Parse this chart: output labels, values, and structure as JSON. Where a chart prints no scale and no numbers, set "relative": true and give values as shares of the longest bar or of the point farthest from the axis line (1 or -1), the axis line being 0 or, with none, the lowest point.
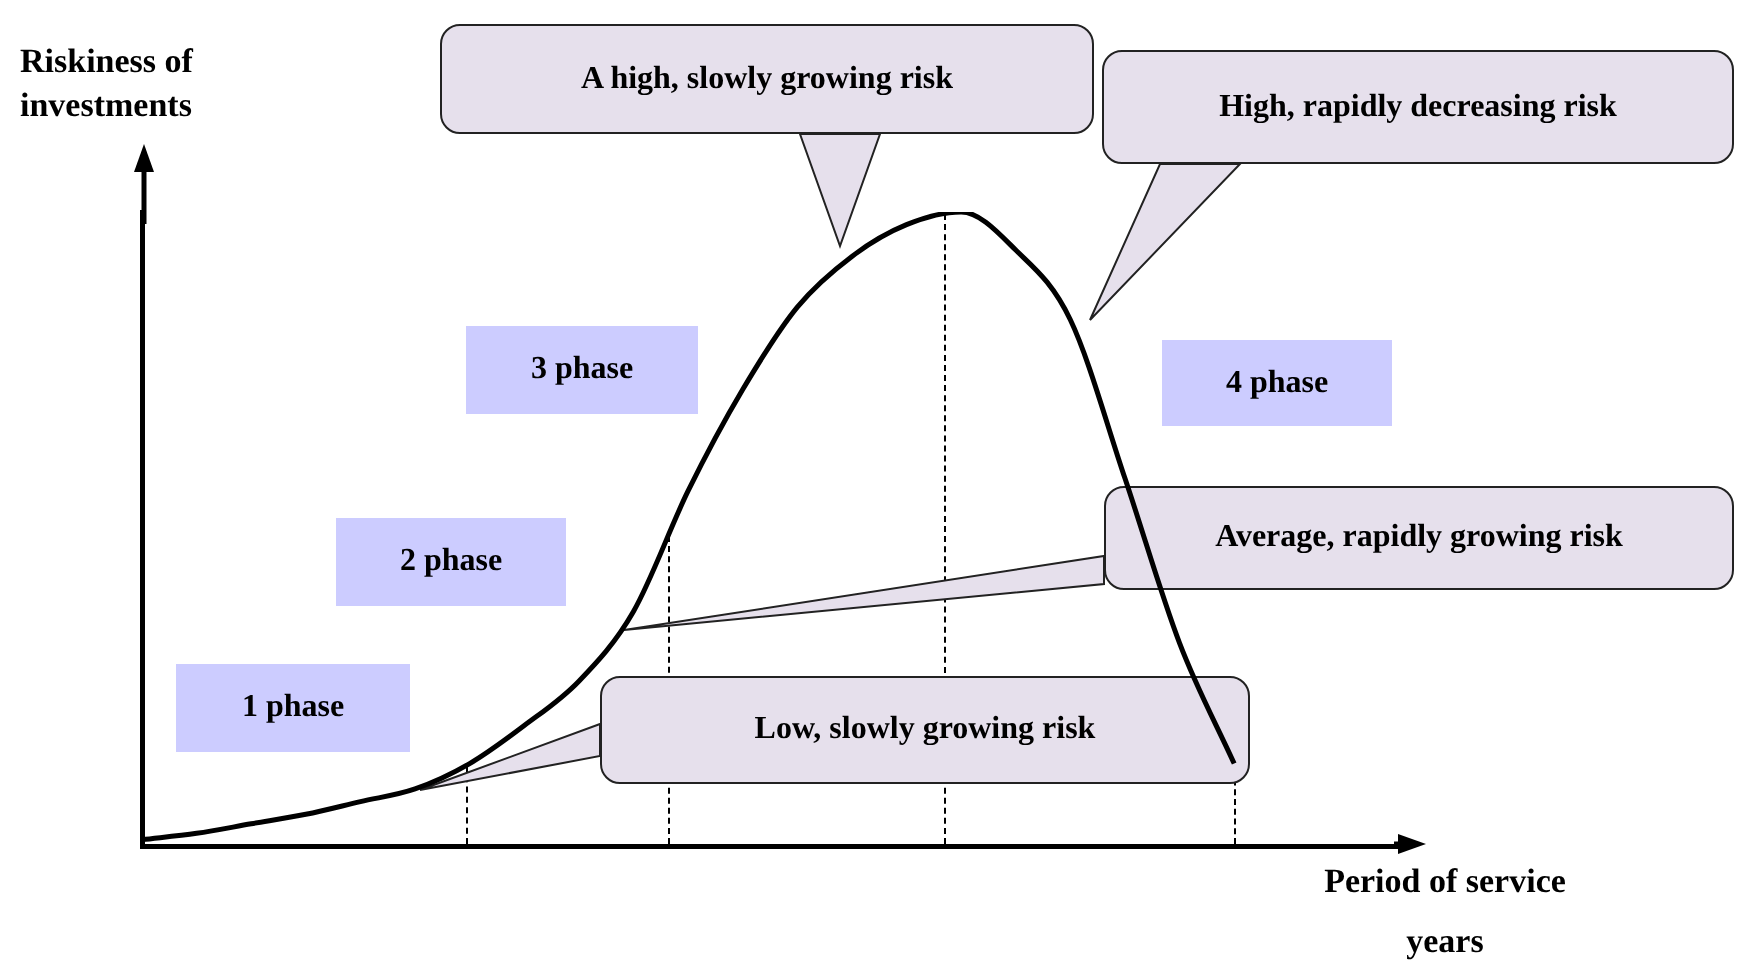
{
  "chart_data": {
    "type": "line",
    "relative": true,
    "ylabel": "Riskiness of\ninvestments",
    "xlabel": "Period of service\nyears",
    "categories": [
      null,
      null,
      null,
      null,
      null,
      null,
      null,
      null,
      null,
      null,
      null,
      null,
      null,
      null,
      null,
      null,
      null,
      null,
      null,
      null,
      null,
      null,
      null,
      null
    ],
    "series": [
      {
        "color": "#000000",
        "values": [
          0.01,
          0.02,
          0.035,
          0.05,
          0.07,
          0.09,
          0.13,
          0.19,
          0.26,
          0.37,
          0.56,
          0.72,
          0.85,
          0.93,
          0.98,
          1,
          0.94,
          0.83,
          0.58,
          0.32,
          0.13,
          null,
          null,
          null
        ]
      }
    ],
    "annotations": [
      "A high, slowly growing risk",
      "High, rapidly decreasing risk",
      "Average, rapidly growing risk",
      "Low, slowly growing risk",
      "1 phase",
      "2 phase",
      "3 phase",
      "4 phase"
    ]
  }
}
